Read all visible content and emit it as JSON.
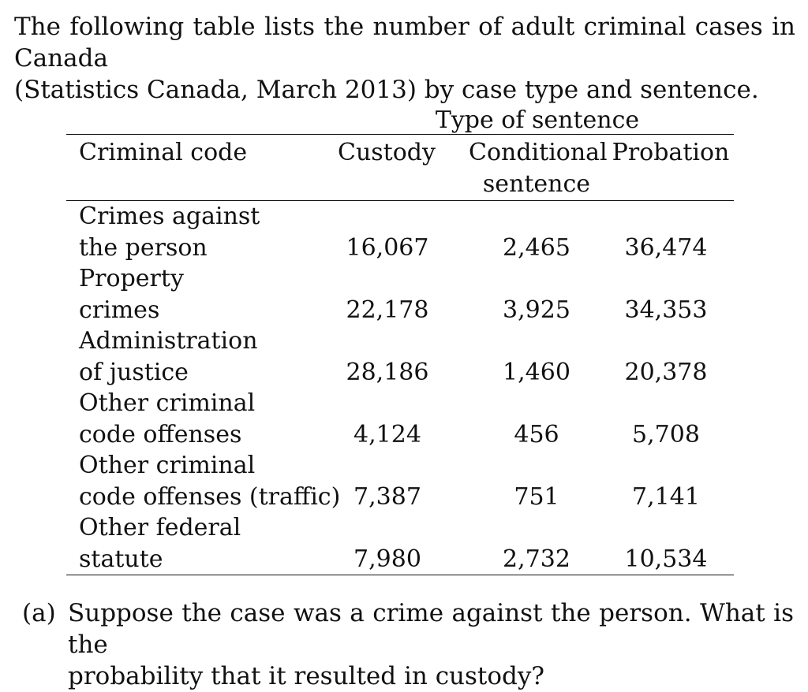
{
  "intro": {
    "line1": "The following table lists the number of adult criminal cases in Canada",
    "line2": "(Statistics Canada, March 2013) by case type and sentence."
  },
  "table": {
    "group_header": "Type of sentence",
    "row_header": "Criminal code",
    "columns": [
      {
        "line1": "Custody",
        "line2": ""
      },
      {
        "line1": "Conditional",
        "line2": "sentence"
      },
      {
        "line1": "Probation",
        "line2": ""
      }
    ],
    "rows": [
      {
        "label_line1": "Crimes against",
        "label_line2": "the person",
        "custody": "16,067",
        "conditional": "2,465",
        "probation": "36,474"
      },
      {
        "label_line1": "Property",
        "label_line2": "crimes",
        "custody": "22,178",
        "conditional": "3,925",
        "probation": "34,353"
      },
      {
        "label_line1": "Administration",
        "label_line2": "of justice",
        "custody": "28,186",
        "conditional": "1,460",
        "probation": "20,378"
      },
      {
        "label_line1": "Other criminal",
        "label_line2": "code offenses",
        "custody": "4,124",
        "conditional": "456",
        "probation": "5,708"
      },
      {
        "label_line1": "Other criminal",
        "label_line2": "code offenses (traffic)",
        "custody": "7,387",
        "conditional": "751",
        "probation": "7,141"
      },
      {
        "label_line1": "Other federal",
        "label_line2": "statute",
        "custody": "7,980",
        "conditional": "2,732",
        "probation": "10,534"
      }
    ]
  },
  "question": {
    "label": "(a)",
    "line1": "Suppose the case was a crime against the person.  What is the",
    "line2": "probability that it resulted in custody?"
  }
}
